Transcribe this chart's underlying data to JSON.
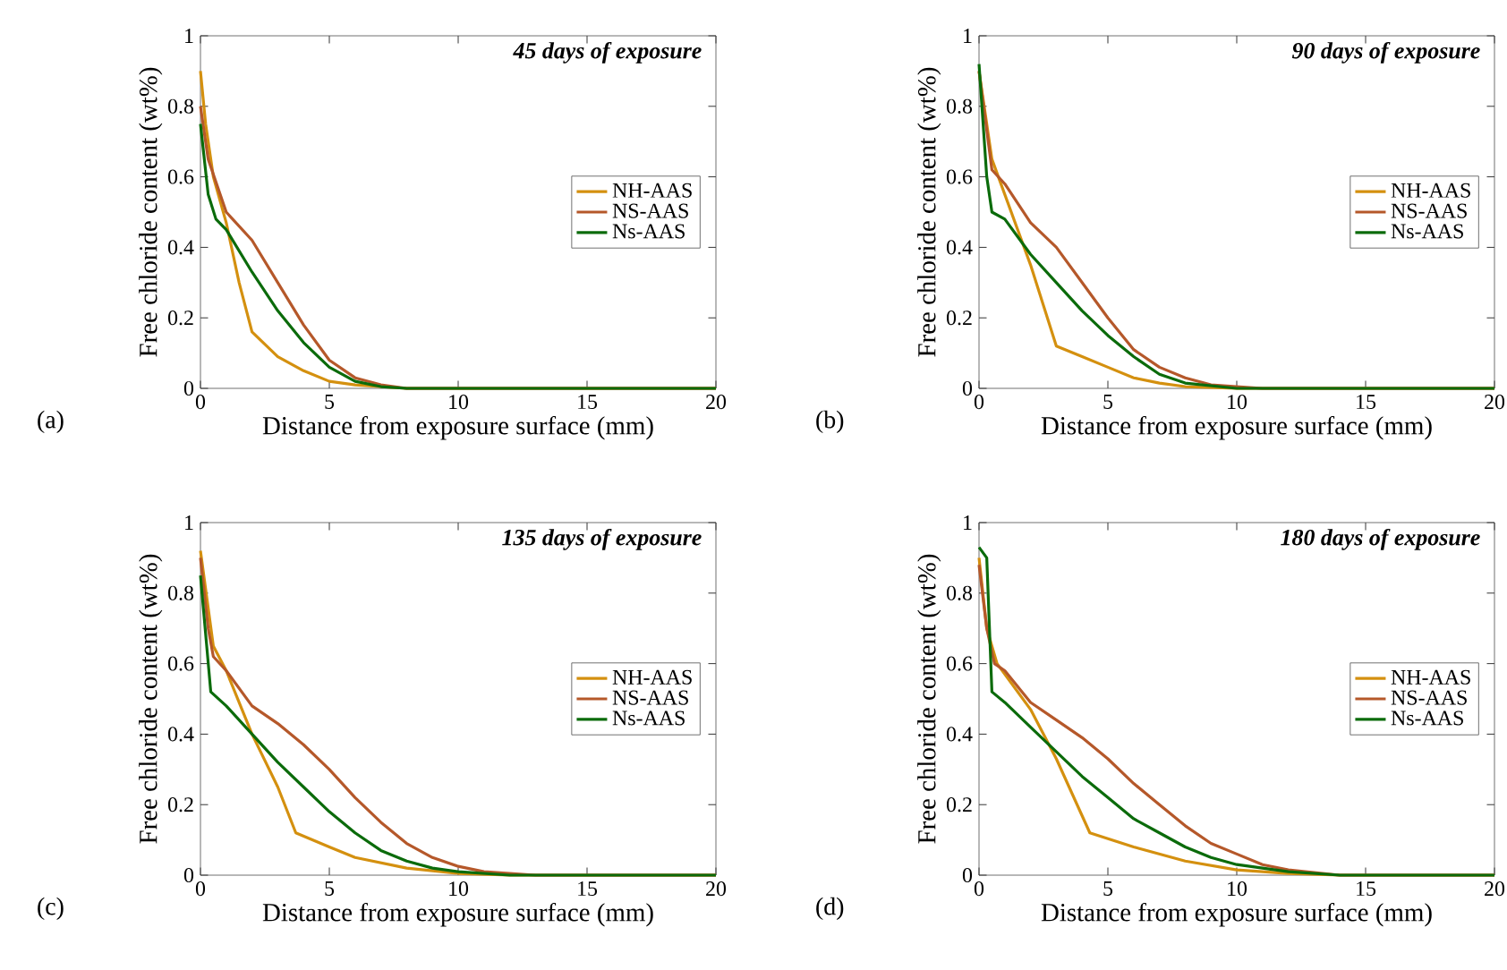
{
  "chart_data": [
    {
      "type": "line",
      "title": "45 days of exposure",
      "xlabel": "Distance from exposure surface (mm)",
      "ylabel": "Free chloride content (wt%)",
      "annotations": [
        "(a)"
      ],
      "xlim": [
        0,
        20
      ],
      "ylim": [
        0,
        1
      ],
      "xticks": [
        0,
        5,
        10,
        15,
        20
      ],
      "yticks": [
        0,
        0.2,
        0.4,
        0.6,
        0.8,
        1
      ],
      "legend": "right",
      "series": [
        {
          "name": "NH-AAS",
          "color": "#d4900f",
          "x": [
            0,
            0.2,
            0.5,
            1,
            1.5,
            2,
            3,
            4,
            5,
            6,
            8,
            20
          ],
          "values": [
            0.9,
            0.75,
            0.6,
            0.47,
            0.3,
            0.16,
            0.09,
            0.05,
            0.02,
            0.01,
            0,
            0
          ]
        },
        {
          "name": "NS-AAS",
          "color": "#b5582a",
          "x": [
            0,
            0.3,
            1,
            2,
            3,
            4,
            5,
            6,
            7,
            8,
            20
          ],
          "values": [
            0.8,
            0.65,
            0.5,
            0.42,
            0.3,
            0.18,
            0.08,
            0.03,
            0.01,
            0,
            0
          ]
        },
        {
          "name": "Ns-AAS",
          "color": "#0b6b0b",
          "x": [
            0,
            0.3,
            0.6,
            1,
            2,
            3,
            4,
            5,
            6,
            7,
            8,
            20
          ],
          "values": [
            0.75,
            0.55,
            0.48,
            0.45,
            0.33,
            0.22,
            0.13,
            0.06,
            0.02,
            0.005,
            0,
            0
          ]
        }
      ]
    },
    {
      "type": "line",
      "title": "90 days of exposure",
      "xlabel": "Distance from exposure surface (mm)",
      "ylabel": "Free chloride content (wt%)",
      "annotations": [
        "(b)"
      ],
      "xlim": [
        0,
        20
      ],
      "ylim": [
        0,
        1
      ],
      "xticks": [
        0,
        5,
        10,
        15,
        20
      ],
      "yticks": [
        0,
        0.2,
        0.4,
        0.6,
        0.8,
        1
      ],
      "legend": "right",
      "series": [
        {
          "name": "NH-AAS",
          "color": "#d4900f",
          "x": [
            0,
            0.5,
            1,
            2,
            3,
            4,
            5,
            6,
            7,
            8,
            10,
            20
          ],
          "values": [
            0.9,
            0.65,
            0.55,
            0.35,
            0.12,
            0.09,
            0.06,
            0.03,
            0.015,
            0.005,
            0,
            0
          ]
        },
        {
          "name": "NS-AAS",
          "color": "#b5582a",
          "x": [
            0,
            0.5,
            1,
            2,
            3,
            4,
            5,
            6,
            7,
            8,
            9,
            11,
            20
          ],
          "values": [
            0.9,
            0.62,
            0.58,
            0.47,
            0.4,
            0.3,
            0.2,
            0.11,
            0.06,
            0.03,
            0.01,
            0,
            0
          ]
        },
        {
          "name": "Ns-AAS",
          "color": "#0b6b0b",
          "x": [
            0,
            0.3,
            0.5,
            1,
            2,
            3,
            4,
            5,
            6,
            7,
            8,
            10,
            20
          ],
          "values": [
            0.92,
            0.6,
            0.5,
            0.48,
            0.38,
            0.3,
            0.22,
            0.15,
            0.09,
            0.04,
            0.015,
            0,
            0
          ]
        }
      ]
    },
    {
      "type": "line",
      "title": "135 days of exposure",
      "xlabel": "Distance from exposure surface (mm)",
      "ylabel": "Free chloride content (wt%)",
      "annotations": [
        "(c)"
      ],
      "xlim": [
        0,
        20
      ],
      "ylim": [
        0,
        1
      ],
      "xticks": [
        0,
        5,
        10,
        15,
        20
      ],
      "yticks": [
        0,
        0.2,
        0.4,
        0.6,
        0.8,
        1
      ],
      "legend": "right",
      "series": [
        {
          "name": "NH-AAS",
          "color": "#d4900f",
          "x": [
            0,
            0.5,
            1,
            2,
            3,
            3.7,
            5,
            6,
            8,
            10,
            12,
            20
          ],
          "values": [
            0.92,
            0.65,
            0.58,
            0.4,
            0.25,
            0.12,
            0.08,
            0.05,
            0.02,
            0.005,
            0,
            0
          ]
        },
        {
          "name": "NS-AAS",
          "color": "#b5582a",
          "x": [
            0,
            0.3,
            0.5,
            1,
            2,
            3,
            4,
            5,
            6,
            7,
            8,
            9,
            10,
            11,
            13,
            20
          ],
          "values": [
            0.9,
            0.7,
            0.62,
            0.58,
            0.48,
            0.43,
            0.37,
            0.3,
            0.22,
            0.15,
            0.09,
            0.05,
            0.025,
            0.01,
            0,
            0
          ]
        },
        {
          "name": "Ns-AAS",
          "color": "#0b6b0b",
          "x": [
            0,
            0.4,
            1,
            2,
            3,
            4,
            5,
            6,
            7,
            8,
            9,
            10,
            12,
            20
          ],
          "values": [
            0.85,
            0.52,
            0.48,
            0.4,
            0.32,
            0.25,
            0.18,
            0.12,
            0.07,
            0.04,
            0.02,
            0.01,
            0,
            0
          ]
        }
      ]
    },
    {
      "type": "line",
      "title": "180 days of exposure",
      "xlabel": "Distance from exposure surface (mm)",
      "ylabel": "Free chloride content (wt%)",
      "annotations": [
        "(d)"
      ],
      "xlim": [
        0,
        20
      ],
      "ylim": [
        0,
        1
      ],
      "xticks": [
        0,
        5,
        10,
        15,
        20
      ],
      "yticks": [
        0,
        0.2,
        0.4,
        0.6,
        0.8,
        1
      ],
      "legend": "right",
      "series": [
        {
          "name": "NH-AAS",
          "color": "#d4900f",
          "x": [
            0,
            0.3,
            0.7,
            2,
            3,
            4.3,
            6,
            8,
            10,
            12,
            14,
            20
          ],
          "values": [
            0.9,
            0.7,
            0.6,
            0.47,
            0.33,
            0.12,
            0.08,
            0.04,
            0.015,
            0.005,
            0,
            0
          ]
        },
        {
          "name": "NS-AAS",
          "color": "#b5582a",
          "x": [
            0,
            0.3,
            0.6,
            1,
            2,
            3,
            4,
            5,
            6,
            7,
            8,
            9,
            10,
            11,
            12,
            14,
            20
          ],
          "values": [
            0.88,
            0.7,
            0.6,
            0.58,
            0.49,
            0.44,
            0.39,
            0.33,
            0.26,
            0.2,
            0.14,
            0.09,
            0.06,
            0.03,
            0.015,
            0,
            0
          ]
        },
        {
          "name": "Ns-AAS",
          "color": "#0b6b0b",
          "x": [
            0,
            0.3,
            0.5,
            1,
            2,
            3,
            4,
            5,
            6,
            7,
            8,
            9,
            10,
            12,
            14,
            20
          ],
          "values": [
            0.93,
            0.9,
            0.52,
            0.49,
            0.42,
            0.35,
            0.28,
            0.22,
            0.16,
            0.12,
            0.08,
            0.05,
            0.03,
            0.01,
            0,
            0
          ]
        }
      ]
    }
  ]
}
